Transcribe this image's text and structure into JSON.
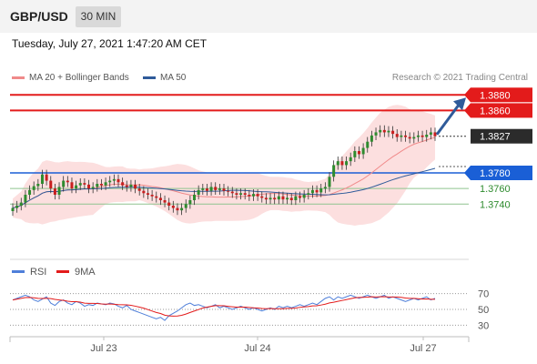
{
  "header": {
    "symbol": "GBP/USD",
    "timeframe": "30 MIN"
  },
  "timestamp": "Tuesday, July 27, 2021 1:47:20 AM CET",
  "legend": [
    {
      "label": "MA 20 + Bollinger Bands",
      "color": "#f08a8a"
    },
    {
      "label": "MA 50",
      "color": "#2f5b9a"
    }
  ],
  "copyright": "Research © 2021 Trading Central",
  "colors": {
    "up": "#2e8b2e",
    "down": "#c81e1e",
    "resistance": "#e31b1b",
    "support": "#1a5fd6",
    "green_level": "#2e8b2e",
    "band": "#fbd9d9",
    "ma50": "#2f5b9a",
    "rsi": "#4f7fd9",
    "rsi_ma": "#e31b1b",
    "arrow": "#2f5b9a"
  },
  "chart_data": [
    {
      "type": "candlestick",
      "x_ticks": [
        "Jul 23",
        "Jul 24",
        "Jul 27"
      ],
      "price_levels": [
        {
          "value": "1.3880",
          "kind": "resistance"
        },
        {
          "value": "1.3860",
          "kind": "resistance"
        },
        {
          "value": "1.3827",
          "kind": "current"
        },
        {
          "value": "1.3780",
          "kind": "support"
        },
        {
          "value": "1.3760",
          "kind": "minor"
        },
        {
          "value": "1.3740",
          "kind": "minor"
        }
      ],
      "ylim": [
        1.3675,
        1.3885
      ],
      "close": [
        1.3735,
        1.3738,
        1.3742,
        1.3752,
        1.3758,
        1.3763,
        1.3766,
        1.3778,
        1.377,
        1.376,
        1.3752,
        1.3762,
        1.377,
        1.3768,
        1.376,
        1.3764,
        1.3767,
        1.3765,
        1.376,
        1.3762,
        1.3766,
        1.3764,
        1.3768,
        1.377,
        1.3772,
        1.3768,
        1.3764,
        1.3762,
        1.3765,
        1.376,
        1.3757,
        1.3754,
        1.3752,
        1.375,
        1.3748,
        1.3745,
        1.3742,
        1.3738,
        1.3735,
        1.3732,
        1.3735,
        1.374,
        1.3745,
        1.3752,
        1.3758,
        1.376,
        1.3757,
        1.3762,
        1.3758,
        1.376,
        1.3757,
        1.3756,
        1.3754,
        1.3752,
        1.3754,
        1.3752,
        1.375,
        1.3753,
        1.375,
        1.3748,
        1.3746,
        1.3748,
        1.3746,
        1.375,
        1.3746,
        1.3748,
        1.3745,
        1.375,
        1.3748,
        1.3752,
        1.3754,
        1.3758,
        1.3755,
        1.376,
        1.3762,
        1.3775,
        1.379,
        1.3795,
        1.379,
        1.3795,
        1.38,
        1.3808,
        1.3804,
        1.3812,
        1.382,
        1.3828,
        1.3832,
        1.3835,
        1.3832,
        1.3834,
        1.383,
        1.3826,
        1.3828,
        1.3826,
        1.3824,
        1.3826,
        1.3828,
        1.3826,
        1.3829,
        1.3832,
        1.3827
      ]
    },
    {
      "type": "line",
      "title": "RSI",
      "series": [
        {
          "name": "RSI"
        },
        {
          "name": "9MA"
        }
      ],
      "y_ticks": [
        70,
        50,
        30
      ],
      "ylim": [
        20,
        80
      ],
      "rsi": [
        62,
        64,
        66,
        68,
        66,
        62,
        60,
        63,
        66,
        58,
        55,
        60,
        62,
        58,
        56,
        60,
        58,
        54,
        56,
        55,
        58,
        57,
        56,
        58,
        57,
        54,
        52,
        55,
        50,
        48,
        46,
        44,
        42,
        40,
        38,
        40,
        36,
        42,
        45,
        48,
        52,
        56,
        58,
        55,
        56,
        54,
        52,
        54,
        56,
        52,
        54,
        52,
        50,
        52,
        54,
        52,
        50,
        52,
        50,
        48,
        50,
        52,
        50,
        54,
        52,
        54,
        52,
        54,
        56,
        54,
        56,
        58,
        56,
        60,
        64,
        66,
        62,
        66,
        64,
        66,
        68,
        66,
        64,
        66,
        68,
        66,
        64,
        66,
        68,
        64,
        66,
        64,
        62,
        60,
        62,
        64,
        62,
        64,
        66,
        62,
        64
      ]
    }
  ]
}
